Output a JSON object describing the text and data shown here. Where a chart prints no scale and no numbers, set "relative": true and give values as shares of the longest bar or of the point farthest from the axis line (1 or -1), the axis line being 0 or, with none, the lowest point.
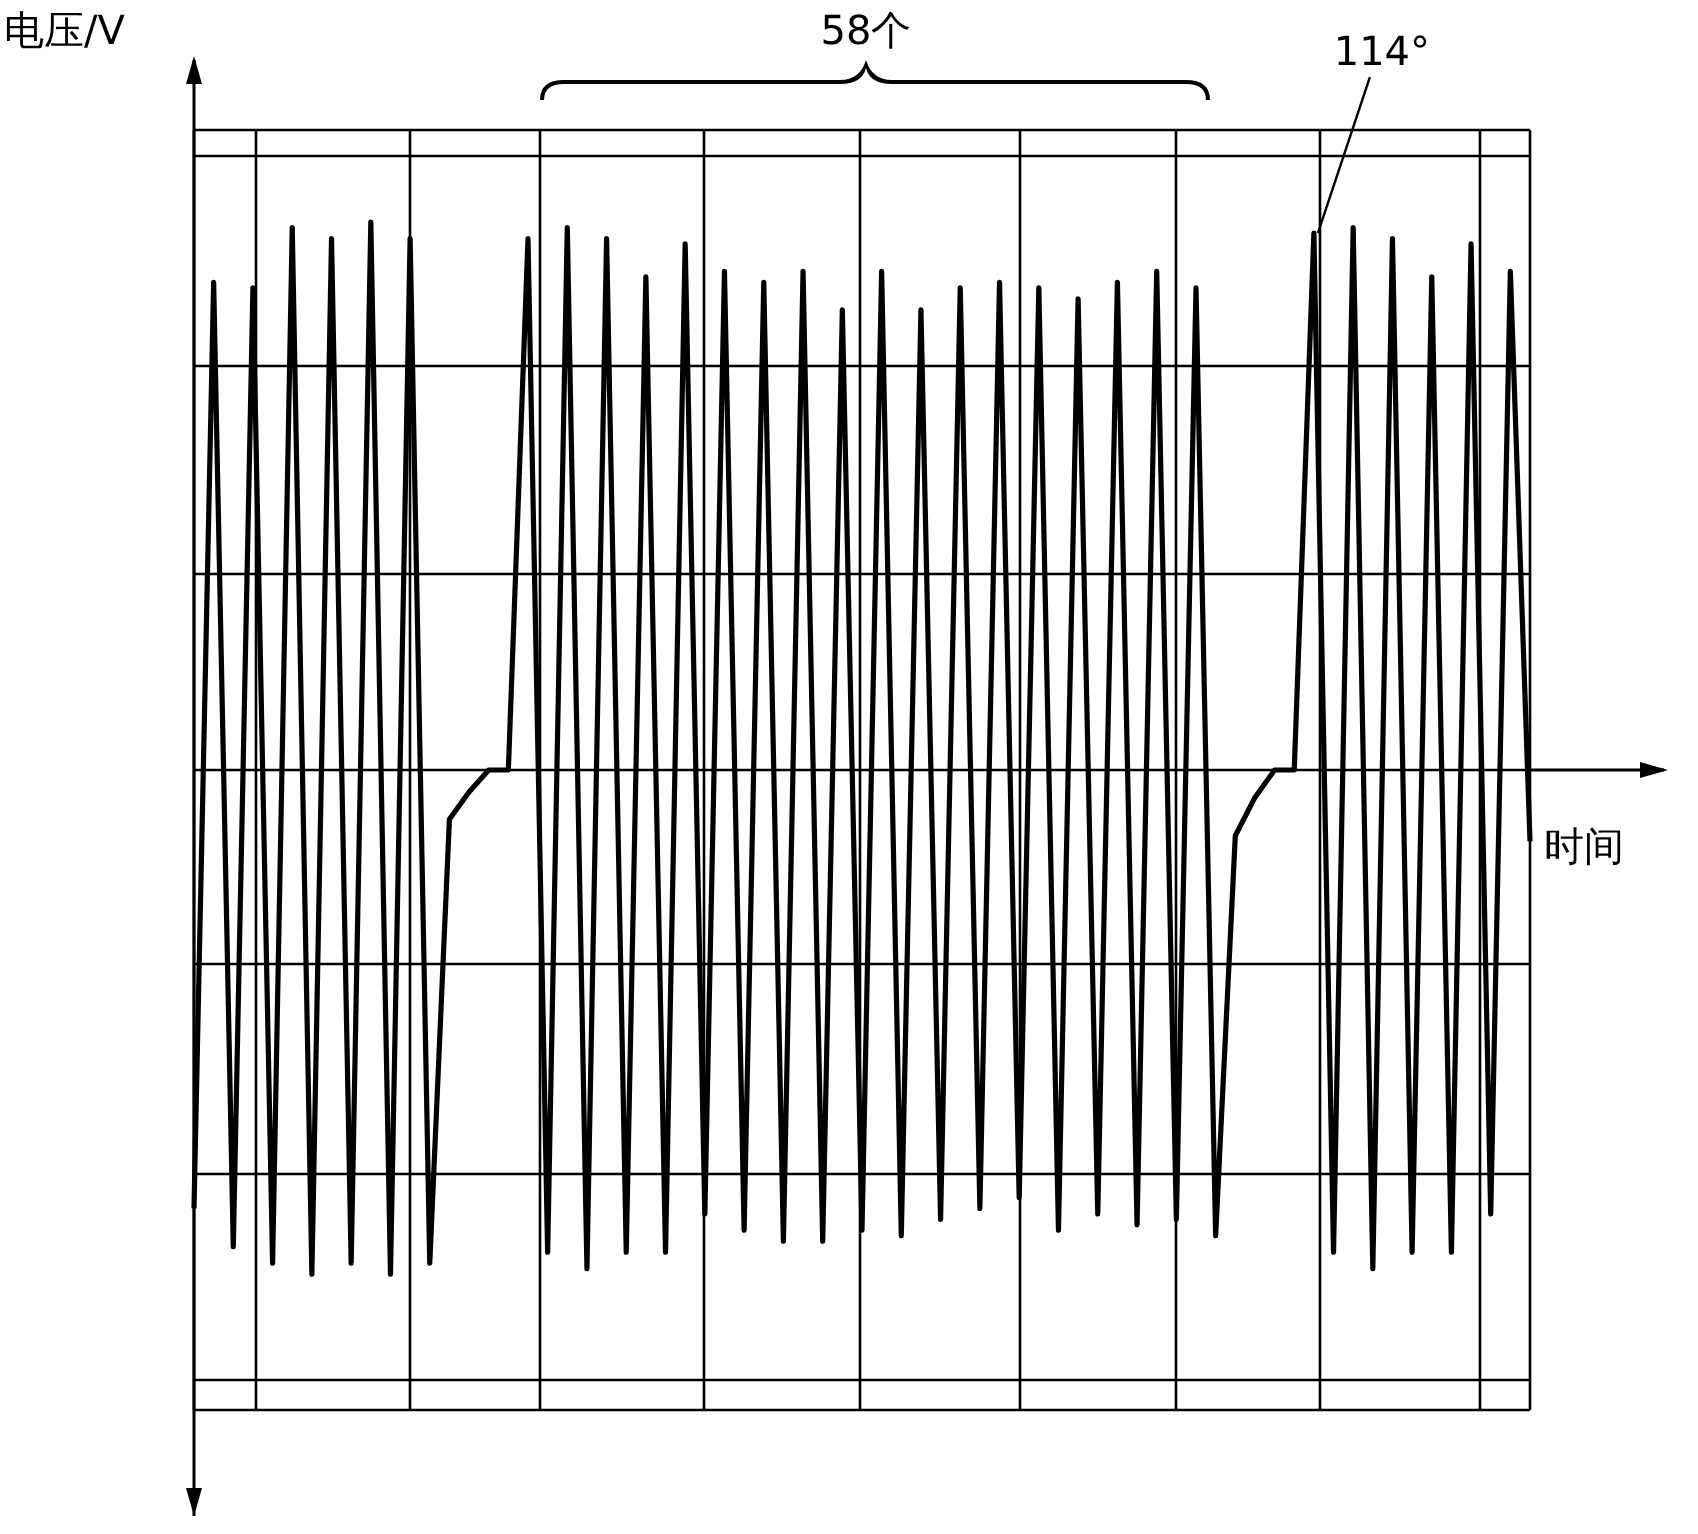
{
  "chart_data": {
    "type": "line",
    "relative": true,
    "xlabel": "时间",
    "ylabel": "电压/V",
    "grid": true,
    "marker": "none",
    "line_style": "solid",
    "annotations": [
      "58个",
      "114°"
    ],
    "categories": [
      null,
      null,
      null,
      null,
      null,
      null,
      null,
      null,
      null,
      null,
      null,
      null,
      null,
      null,
      null,
      null,
      null,
      null,
      null,
      null,
      null,
      null,
      null,
      null,
      null,
      null,
      null,
      null,
      null,
      null,
      null,
      null,
      null,
      null,
      null,
      null,
      null,
      null,
      null,
      null,
      null,
      null,
      null,
      null,
      null,
      null,
      null,
      null,
      null,
      null,
      null,
      null,
      null,
      null,
      null,
      null,
      null,
      null,
      null,
      null,
      null,
      null,
      null,
      null,
      null,
      null,
      null,
      null,
      null
    ],
    "series": [
      {
        "color": "#000000",
        "values": [
          -0.8,
          0.89,
          -0.87,
          0.88,
          -0.9,
          0.99,
          -0.92,
          0.97,
          -0.9,
          1.0,
          -0.92,
          0.97,
          -0.9,
          -0.09,
          -0.04,
          0,
          0,
          0.97,
          -0.88,
          0.99,
          -0.91,
          0.97,
          -0.88,
          0.9,
          -0.88,
          0.96,
          -0.81,
          0.91,
          -0.84,
          0.89,
          -0.86,
          0.91,
          -0.86,
          0.84,
          -0.84,
          0.91,
          -0.85,
          0.84,
          -0.82,
          0.88,
          -0.8,
          0.89,
          -0.78,
          0.88,
          -0.84,
          0.86,
          -0.81,
          0.89,
          -0.83,
          0.91,
          -0.82,
          0.88,
          -0.85,
          -0.12,
          -0.05,
          0,
          0,
          0.98,
          -0.88,
          0.99,
          -0.91,
          0.97,
          -0.88,
          0.9,
          -0.88,
          0.96,
          -0.81,
          0.91,
          -0.13
        ]
      }
    ]
  }
}
